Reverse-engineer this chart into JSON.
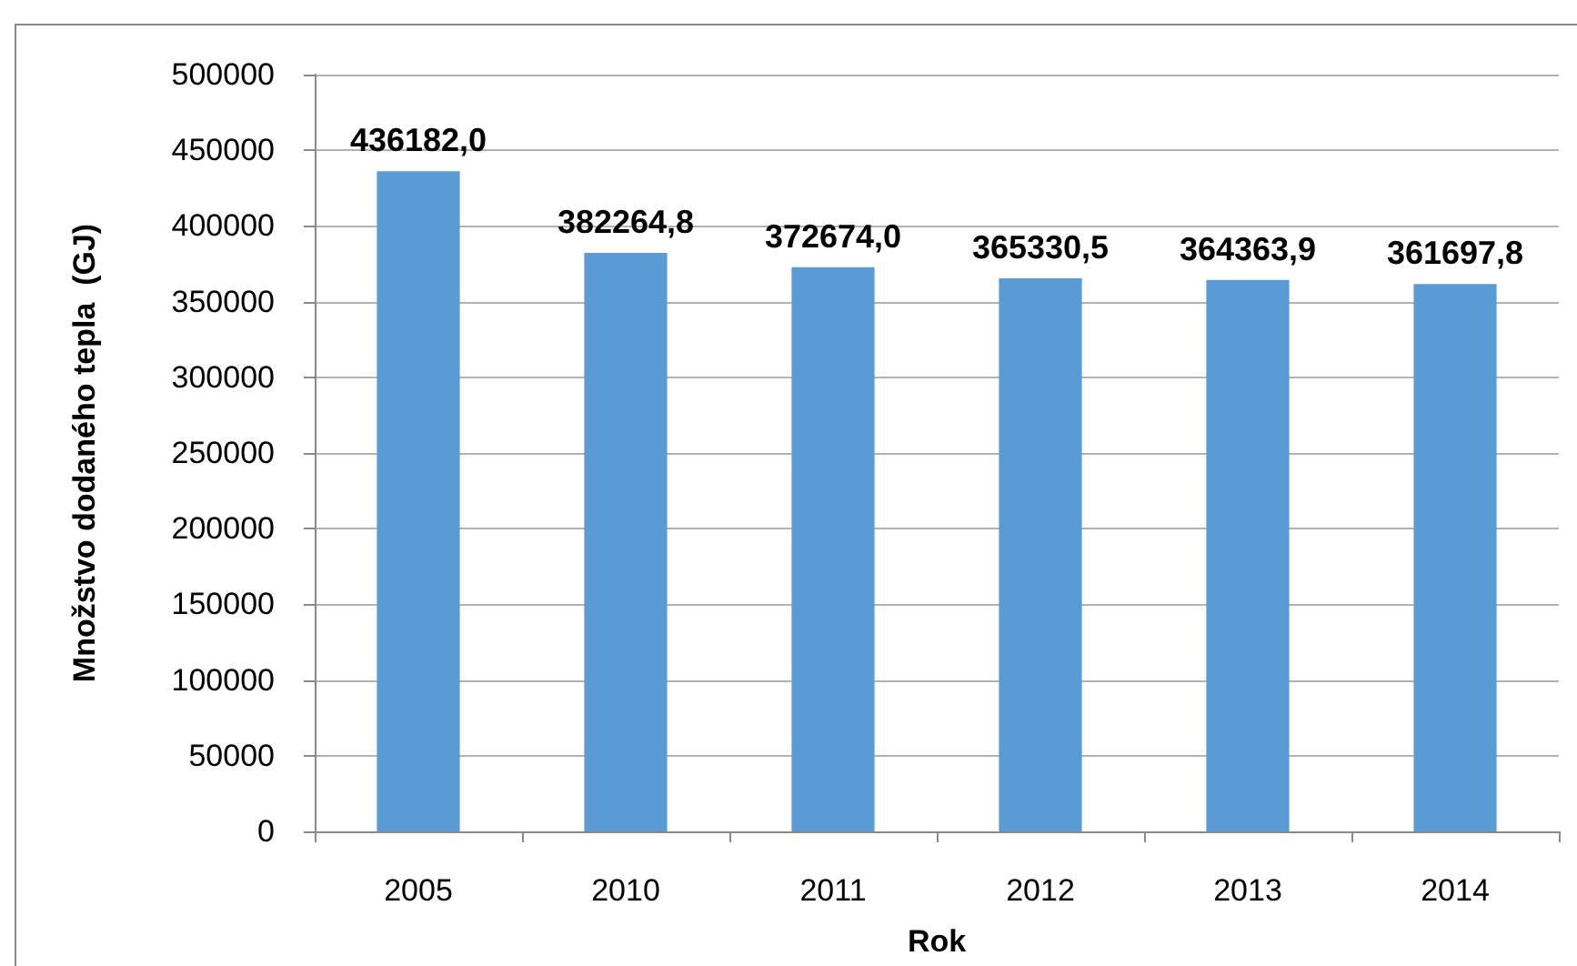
{
  "chart_data": {
    "type": "bar",
    "xlabel": "Rok",
    "ylabel": "Množstvo dodaného tepla  (GJ)",
    "categories": [
      "2005",
      "2010",
      "2011",
      "2012",
      "2013",
      "2014"
    ],
    "values": [
      436182.0,
      382264.8,
      372674.0,
      365330.5,
      364363.9,
      361697.8
    ],
    "value_labels": [
      "436182,0",
      "382264,8",
      "372674,0",
      "365330,5",
      "364363,9",
      "361697,8"
    ],
    "color": "#5b9bd5",
    "ylim": [
      0,
      500000
    ],
    "yticks": [
      0,
      50000,
      100000,
      150000,
      200000,
      250000,
      300000,
      350000,
      400000,
      450000,
      500000
    ],
    "grid": "y"
  }
}
